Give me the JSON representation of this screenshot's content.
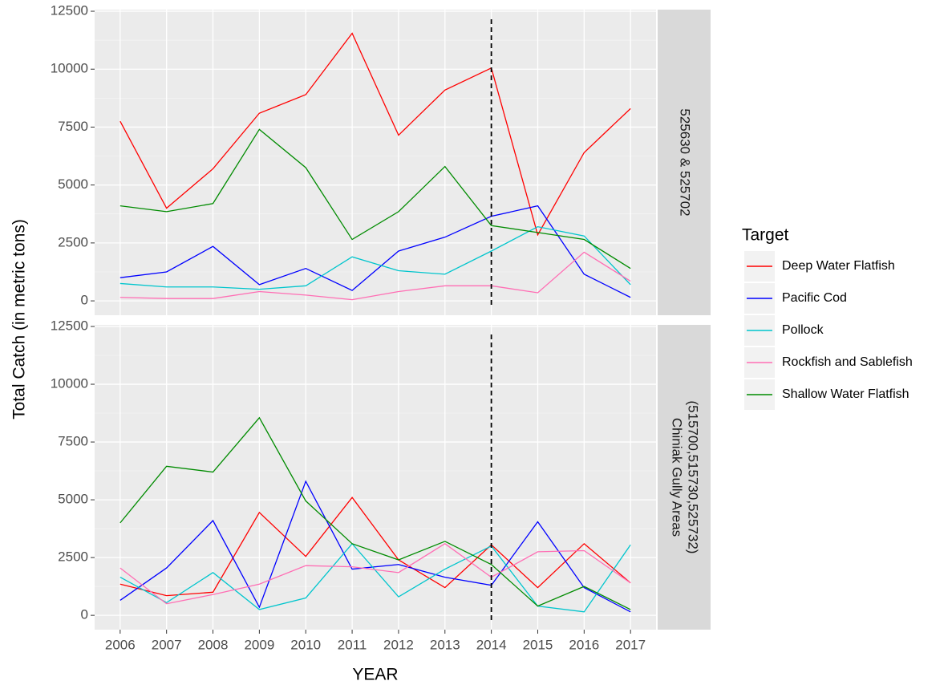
{
  "chart_data": [
    {
      "type": "line",
      "xlabel": "YEAR",
      "ylabel": "Total Catch (in metric tons)",
      "legend_title": "Target",
      "facet": [
        "525630 & 525702"
      ],
      "vline": 2014,
      "x": [
        2006,
        2007,
        2008,
        2009,
        2010,
        2011,
        2012,
        2013,
        2014,
        2015,
        2016,
        2017
      ],
      "xlim": [
        2005.45,
        2017.55
      ],
      "xticks": [
        2006,
        2007,
        2008,
        2009,
        2010,
        2011,
        2012,
        2013,
        2014,
        2015,
        2016,
        2017
      ],
      "ylim": [
        -620,
        12570
      ],
      "yticks": [
        0,
        2500,
        5000,
        7500,
        10000,
        12500
      ],
      "grid": true,
      "series": [
        {
          "name": "Deep Water Flatfish",
          "color": "#ff0000",
          "values": [
            7750,
            4000,
            5700,
            8100,
            8900,
            11550,
            7150,
            9100,
            10050,
            2850,
            6400,
            8300
          ]
        },
        {
          "name": "Pacific Cod",
          "color": "#0000ff",
          "values": [
            1000,
            1250,
            2350,
            700,
            1400,
            450,
            2150,
            2750,
            3650,
            4100,
            1150,
            150
          ]
        },
        {
          "name": "Pollock",
          "color": "#00c5cd",
          "values": [
            750,
            600,
            600,
            500,
            650,
            1900,
            1300,
            1150,
            2150,
            3200,
            2800,
            700
          ]
        },
        {
          "name": "Rockfish and Sablefish",
          "color": "#ff6eb4",
          "values": [
            150,
            100,
            100,
            400,
            250,
            50,
            400,
            650,
            650,
            350,
            2100,
            850
          ]
        },
        {
          "name": "Shallow Water Flatfish",
          "color": "#008b00",
          "values": [
            4100,
            3850,
            4200,
            7400,
            5750,
            2650,
            3850,
            5800,
            3250,
            2950,
            2650,
            1400
          ]
        }
      ]
    },
    {
      "type": "line",
      "facet": [
        "Chiniak Gully Areas",
        "(515700,515730,525732)"
      ],
      "vline": 2014,
      "x": [
        2006,
        2007,
        2008,
        2009,
        2010,
        2011,
        2012,
        2013,
        2014,
        2015,
        2016,
        2017
      ],
      "xlim": [
        2005.45,
        2017.55
      ],
      "xticks": [
        2006,
        2007,
        2008,
        2009,
        2010,
        2011,
        2012,
        2013,
        2014,
        2015,
        2016,
        2017
      ],
      "ylim": [
        -620,
        12570
      ],
      "yticks": [
        0,
        2500,
        5000,
        7500,
        10000,
        12500
      ],
      "grid": true,
      "series": [
        {
          "name": "Deep Water Flatfish",
          "color": "#ff0000",
          "values": [
            1350,
            850,
            1000,
            4450,
            2550,
            5100,
            2400,
            1200,
            3050,
            1200,
            3100,
            1400
          ]
        },
        {
          "name": "Pacific Cod",
          "color": "#0000ff",
          "values": [
            650,
            2050,
            4100,
            350,
            5800,
            2000,
            2200,
            1650,
            1300,
            4050,
            1200,
            150
          ]
        },
        {
          "name": "Pollock",
          "color": "#00c5cd",
          "values": [
            1650,
            550,
            1850,
            250,
            750,
            3100,
            800,
            2000,
            3000,
            400,
            150,
            3050
          ]
        },
        {
          "name": "Rockfish and Sablefish",
          "color": "#ff6eb4",
          "values": [
            2050,
            500,
            900,
            1350,
            2150,
            2100,
            1850,
            3100,
            1650,
            2750,
            2800,
            1400
          ]
        },
        {
          "name": "Shallow Water Flatfish",
          "color": "#008b00",
          "values": [
            4000,
            6450,
            6200,
            8550,
            4950,
            3100,
            2400,
            3200,
            2200,
            400,
            1250,
            250
          ]
        }
      ]
    }
  ]
}
